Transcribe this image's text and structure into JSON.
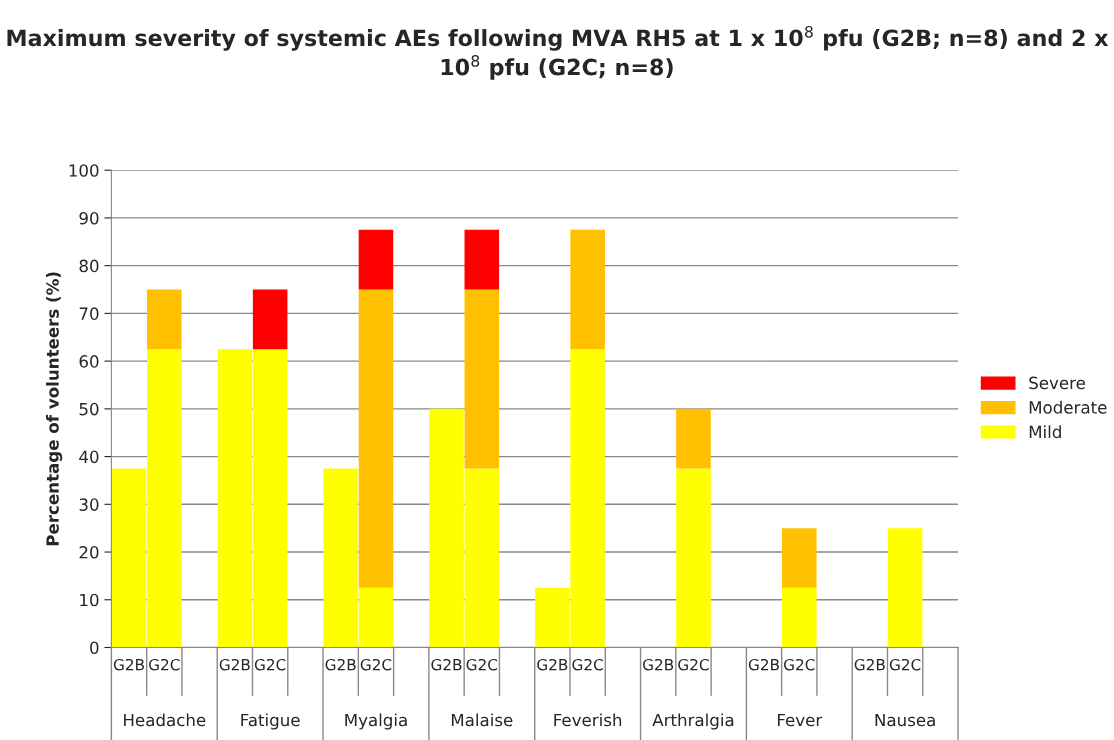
{
  "chart_data": {
    "type": "bar",
    "stacked": true,
    "title": "Maximum severity of systemic AEs following MVA RH5 at 1 x 10$^{8}$ pfu (G2B; n=8) and 2 x 10$^{8}$ pfu (G2C; n=8)",
    "ylabel": "Percentage of volunteers (%)",
    "categories": [
      "G2B",
      "G2C",
      null,
      "G2B",
      "G2C",
      null,
      "G2B",
      "G2C",
      null,
      "G2B",
      "G2C",
      null,
      "G2B",
      "G2C",
      null,
      "G2B",
      "G2C",
      null,
      "G2B",
      "G2C",
      null,
      "G2B",
      "G2C",
      null
    ],
    "annotations": [
      "Headache",
      "Fatigue",
      "Myalgia",
      "Malaise",
      "Feverish",
      "Arthralgia",
      "Fever",
      "Nausea"
    ],
    "series": [
      {
        "name": "Mild",
        "color": "#ffff00",
        "values": [
          37.5,
          62.5,
          null,
          62.5,
          62.5,
          null,
          37.5,
          12.5,
          null,
          50,
          37.5,
          null,
          12.5,
          62.5,
          null,
          null,
          37.5,
          null,
          null,
          12.5,
          null,
          null,
          25,
          null
        ]
      },
      {
        "name": "Moderate",
        "color": "#ffc000",
        "values": [
          null,
          12.5,
          null,
          null,
          null,
          null,
          null,
          62.5,
          null,
          null,
          37.5,
          null,
          null,
          25,
          null,
          null,
          12.5,
          null,
          null,
          12.5,
          null,
          null,
          null,
          null
        ]
      },
      {
        "name": "Severe",
        "color": "#ff0000",
        "values": [
          null,
          null,
          null,
          null,
          12.5,
          null,
          null,
          12.5,
          null,
          null,
          12.5,
          null,
          null,
          null,
          null,
          null,
          null,
          null,
          null,
          null,
          null,
          null,
          null,
          null
        ]
      }
    ],
    "ylim": [
      0,
      100
    ],
    "yticks": [
      0,
      10,
      20,
      30,
      40,
      50,
      60,
      70,
      80,
      90,
      100
    ],
    "grid": "y",
    "legend": "right"
  }
}
